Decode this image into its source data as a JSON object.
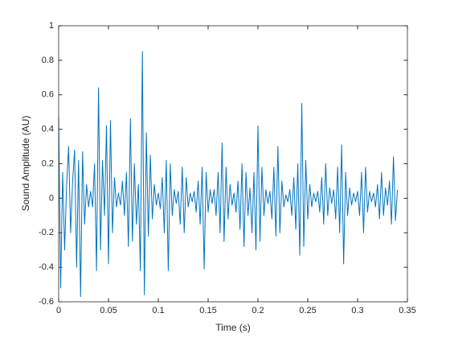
{
  "chart_data": {
    "type": "line",
    "xlabel": "Time (s)",
    "ylabel": "Sound Amplitude (AU)",
    "x": [
      0,
      0.002,
      0.004,
      0.006,
      0.008,
      0.01,
      0.012,
      0.014,
      0.016,
      0.018,
      0.02,
      0.022,
      0.024,
      0.026,
      0.028,
      0.03,
      0.032,
      0.034,
      0.036,
      0.038,
      0.04,
      0.042,
      0.044,
      0.046,
      0.048,
      0.05,
      0.052,
      0.054,
      0.056,
      0.058,
      0.06,
      0.062,
      0.064,
      0.066,
      0.068,
      0.07,
      0.072,
      0.074,
      0.076,
      0.078,
      0.08,
      0.082,
      0.084,
      0.086,
      0.088,
      0.09,
      0.092,
      0.094,
      0.096,
      0.098,
      0.1,
      0.102,
      0.104,
      0.106,
      0.108,
      0.11,
      0.112,
      0.114,
      0.116,
      0.118,
      0.12,
      0.122,
      0.124,
      0.126,
      0.128,
      0.13,
      0.132,
      0.134,
      0.136,
      0.138,
      0.14,
      0.142,
      0.144,
      0.146,
      0.148,
      0.15,
      0.152,
      0.154,
      0.156,
      0.158,
      0.16,
      0.162,
      0.164,
      0.166,
      0.168,
      0.17,
      0.172,
      0.174,
      0.176,
      0.178,
      0.18,
      0.182,
      0.184,
      0.186,
      0.188,
      0.19,
      0.192,
      0.194,
      0.196,
      0.198,
      0.2,
      0.202,
      0.204,
      0.206,
      0.208,
      0.21,
      0.212,
      0.214,
      0.216,
      0.218,
      0.22,
      0.222,
      0.224,
      0.226,
      0.228,
      0.23,
      0.232,
      0.234,
      0.236,
      0.238,
      0.24,
      0.242,
      0.244,
      0.246,
      0.248,
      0.25,
      0.252,
      0.254,
      0.256,
      0.258,
      0.26,
      0.262,
      0.264,
      0.266,
      0.268,
      0.27,
      0.272,
      0.274,
      0.276,
      0.278,
      0.28,
      0.282,
      0.284,
      0.286,
      0.288,
      0.29,
      0.292,
      0.294,
      0.296,
      0.298,
      0.3,
      0.302,
      0.304,
      0.306,
      0.308,
      0.31,
      0.312,
      0.314,
      0.316,
      0.318,
      0.32,
      0.322,
      0.324,
      0.326,
      0.328,
      0.33,
      0.332,
      0.334,
      0.336,
      0.338,
      0.34
    ],
    "series": [
      {
        "color": "#0072bd",
        "values": [
          0.47,
          -0.52,
          0.15,
          -0.3,
          0.08,
          0.3,
          -0.2,
          0.1,
          0.28,
          -0.4,
          0.22,
          -0.57,
          0.27,
          -0.15,
          0.08,
          -0.05,
          0.04,
          -0.05,
          0.2,
          -0.42,
          0.64,
          -0.3,
          0.22,
          -0.1,
          0.42,
          -0.38,
          0.45,
          -0.2,
          0.12,
          -0.05,
          0.03,
          -0.04,
          0.1,
          -0.1,
          0.15,
          -0.28,
          0.46,
          -0.25,
          0.2,
          -0.15,
          0.08,
          -0.42,
          0.85,
          -0.56,
          0.38,
          -0.22,
          0.25,
          -0.12,
          0.08,
          -0.04,
          0.03,
          -0.06,
          0.12,
          -0.2,
          0.22,
          -0.42,
          0.2,
          -0.1,
          0.05,
          -0.03,
          0.04,
          -0.15,
          0.18,
          -0.2,
          0.12,
          -0.05,
          0.03,
          -0.02,
          0.04,
          -0.08,
          0.1,
          -0.15,
          0.18,
          -0.41,
          0.15,
          -0.08,
          0.05,
          -0.03,
          0.05,
          -0.1,
          0.15,
          -0.2,
          0.32,
          -0.25,
          0.18,
          -0.12,
          0.08,
          -0.04,
          0.03,
          -0.08,
          0.1,
          -0.18,
          0.2,
          -0.28,
          0.15,
          -0.1,
          0.06,
          -0.2,
          0.15,
          -0.3,
          0.42,
          -0.25,
          0.18,
          -0.1,
          0.05,
          -0.03,
          0.04,
          -0.12,
          0.18,
          -0.22,
          0.3,
          -0.2,
          0.1,
          -0.05,
          0.02,
          -0.02,
          0.05,
          -0.1,
          0.12,
          -0.18,
          0.2,
          -0.33,
          0.55,
          -0.28,
          0.22,
          -0.12,
          0.08,
          -0.05,
          0.03,
          -0.02,
          0.04,
          -0.08,
          0.12,
          -0.15,
          0.2,
          -0.1,
          0.06,
          -0.03,
          0.05,
          -0.12,
          0.18,
          -0.2,
          0.31,
          -0.38,
          0.15,
          -0.1,
          0.06,
          -0.04,
          0.03,
          -0.02,
          0.04,
          -0.1,
          0.15,
          -0.2,
          0.18,
          -0.08,
          0.04,
          -0.02,
          0.03,
          -0.05,
          0.08,
          -0.12,
          0.15,
          -0.1,
          0.06,
          -0.04,
          0.1,
          -0.15,
          0.24,
          -0.13,
          0.05
        ]
      }
    ],
    "xlim": [
      0,
      0.35
    ],
    "xticks": [
      0,
      0.05,
      0.1,
      0.15,
      0.2,
      0.25,
      0.3,
      0.35
    ],
    "ylim": [
      -0.6,
      1
    ],
    "yticks": [
      -0.6,
      -0.4,
      -0.2,
      0,
      0.2,
      0.4,
      0.6,
      0.8,
      1
    ],
    "grid": false
  }
}
